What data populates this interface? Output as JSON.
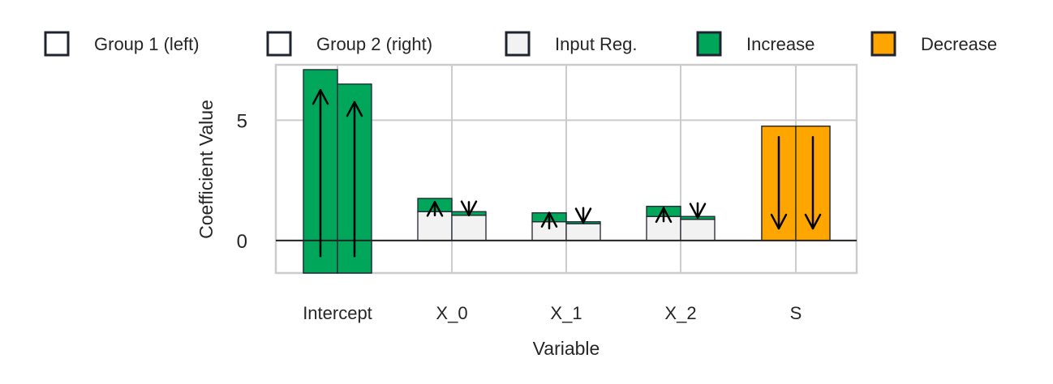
{
  "chart_data": {
    "type": "bar",
    "title": "",
    "xlabel": "Variable",
    "ylabel": "Coefficient Value",
    "ylim": [
      -1.35,
      7.3
    ],
    "yticks": [
      0,
      5
    ],
    "grid": true,
    "legend_placement": "top",
    "categories": [
      "Intercept",
      "X_0",
      "X_1",
      "X_2",
      "S"
    ],
    "series": [
      {
        "name": "Group 1 (left)",
        "input_reg": [
          -1.35,
          1.2,
          0.78,
          1.0,
          0.0
        ],
        "final": [
          7.1,
          1.75,
          1.15,
          1.42,
          4.75
        ]
      },
      {
        "name": "Group 2 (right)",
        "input_reg": [
          -1.35,
          1.05,
          0.7,
          0.88,
          0.0
        ],
        "final": [
          6.5,
          1.2,
          0.78,
          1.0,
          4.75
        ]
      }
    ],
    "arrows": {
      "left": [
        {
          "from": -0.65,
          "to": 6.25
        },
        {
          "from": 1.05,
          "to": 1.6
        },
        {
          "from": 0.5,
          "to": 1.15
        },
        {
          "from": 0.8,
          "to": 1.35
        },
        {
          "from": 4.3,
          "to": 0.5
        }
      ],
      "right": [
        {
          "from": -0.65,
          "to": 5.75
        },
        {
          "from": 1.6,
          "to": 1.05
        },
        {
          "from": 1.35,
          "to": 0.75
        },
        {
          "from": 1.55,
          "to": 0.95
        },
        {
          "from": 4.3,
          "to": 0.5
        }
      ]
    },
    "legend": [
      {
        "label": "Group 1 (left)",
        "kind": "outline"
      },
      {
        "label": "Group 2 (right)",
        "kind": "outline"
      },
      {
        "label": "Input Reg.",
        "kind": "input"
      },
      {
        "label": "Increase",
        "kind": "increase"
      },
      {
        "label": "Decrease",
        "kind": "decrease"
      }
    ],
    "colors": {
      "increase": "#00a65a",
      "decrease": "#ffa500",
      "input_reg": "#f2f2f2",
      "edge": "#1f2430",
      "grid": "#cccccc",
      "zero_line": "#262626"
    }
  }
}
